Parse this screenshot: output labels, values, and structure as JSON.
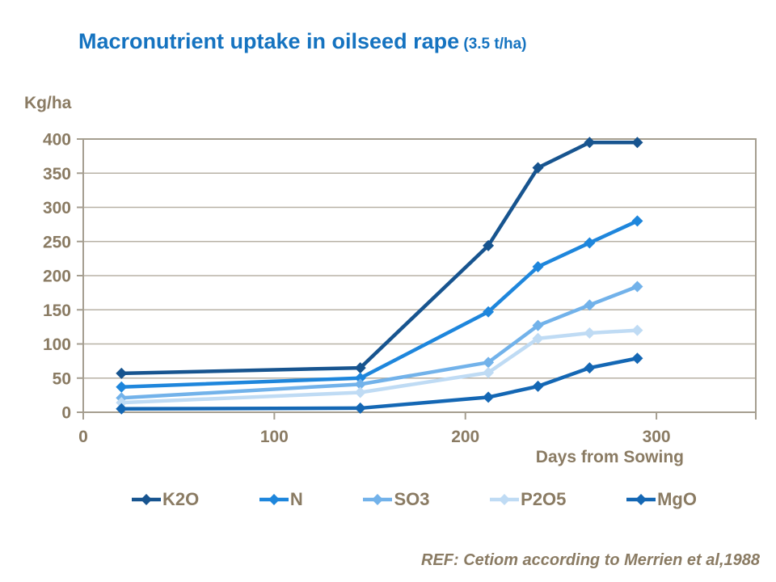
{
  "title": {
    "main": "Macronutrient uptake in oilseed rape",
    "suffix": " (3.5 t/ha)"
  },
  "footer": "REF: Cetiom according to Merrien et al,1988",
  "colors": {
    "title": "#1573C0",
    "text_brown": "#8A7B63",
    "grid": "#B8B2A6",
    "axis_border": "#A59E90"
  },
  "chart_data": {
    "type": "line",
    "title": "Macronutrient uptake in oilseed rape (3.5 t/ha)",
    "xlabel": "Days from Sowing",
    "ylabel": "Kg/ha",
    "x": [
      20,
      145,
      212,
      238,
      265,
      290
    ],
    "series": [
      {
        "name": "K2O",
        "color": "#17548F",
        "values": [
          57,
          65,
          244,
          358,
          395,
          395
        ]
      },
      {
        "name": "N",
        "color": "#1E86DC",
        "values": [
          37,
          50,
          147,
          213,
          248,
          280
        ]
      },
      {
        "name": "SO3",
        "color": "#72B2EA",
        "values": [
          21,
          41,
          73,
          127,
          157,
          184
        ]
      },
      {
        "name": "P2O5",
        "color": "#BFDBF4",
        "values": [
          14,
          29,
          58,
          108,
          116,
          120
        ]
      },
      {
        "name": "MgO",
        "color": "#1467B4",
        "values": [
          5,
          6,
          22,
          38,
          65,
          79
        ]
      }
    ],
    "xlim": [
      0,
      352
    ],
    "ylim": [
      0,
      400
    ],
    "x_ticks": [
      0,
      100,
      200,
      300
    ],
    "y_ticks": [
      0,
      50,
      100,
      150,
      200,
      250,
      300,
      350,
      400
    ],
    "grid": "horizontal",
    "marker": "diamond",
    "legend_position": "bottom"
  }
}
